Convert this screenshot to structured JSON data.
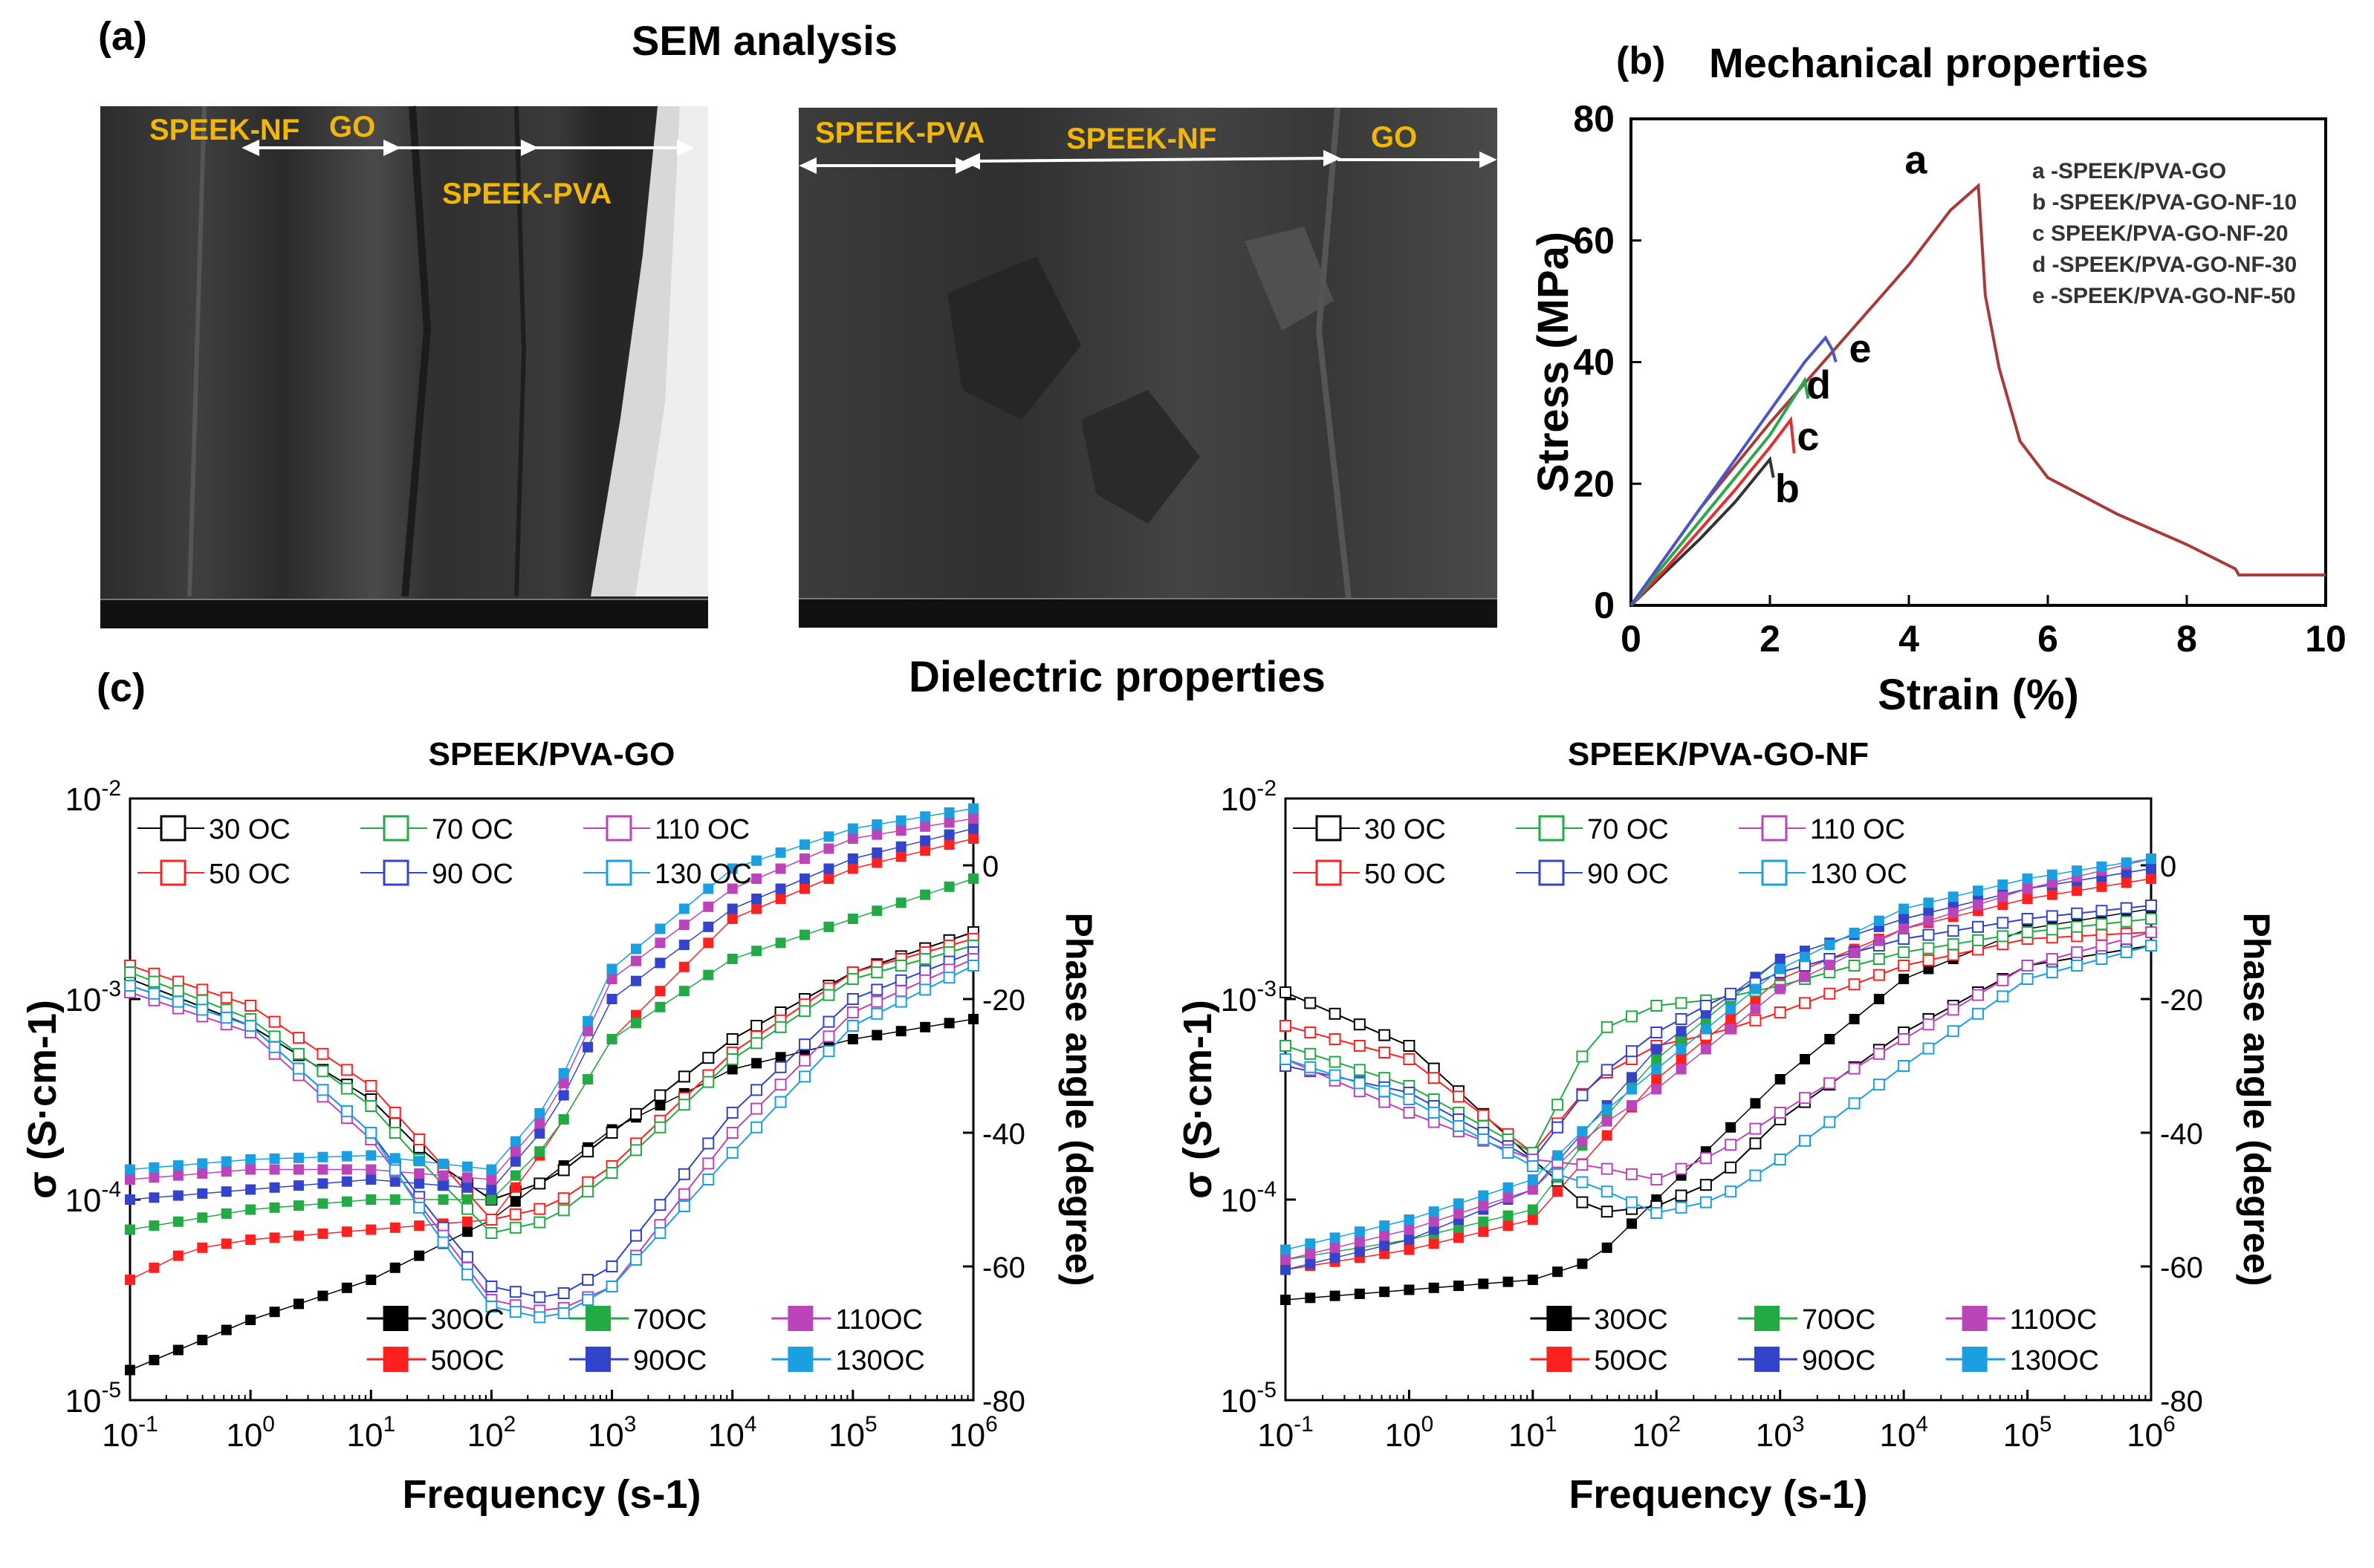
{
  "panel_a": {
    "label": "(a)",
    "title": "SEM analysis",
    "image1": {
      "labels": [
        "SPEEK-NF",
        "GO",
        "SPEEK-PVA"
      ]
    },
    "image2": {
      "labels": [
        "SPEEK-PVA",
        "SPEEK-NF",
        "GO"
      ]
    }
  },
  "panel_b": {
    "label": "(b)",
    "title": "Mechanical properties"
  },
  "panel_c": {
    "label": "(c)",
    "title": "Dielectric properties"
  },
  "chart_data": [
    {
      "type": "line",
      "title": "",
      "xlabel": "Strain (%)",
      "ylabel": "Stress (MPa)",
      "xlim": [
        0,
        10
      ],
      "ylim": [
        0,
        80
      ],
      "xticks": [
        0,
        2,
        4,
        6,
        8,
        10
      ],
      "yticks": [
        0,
        20,
        40,
        60,
        80
      ],
      "legend": [
        "a -SPEEK/PVA-GO",
        "b -SPEEK/PVA-GO-NF-10",
        "c  SPEEK/PVA-GO-NF-20",
        "d -SPEEK/PVA-GO-NF-30",
        "e -SPEEK/PVA-GO-NF-50"
      ],
      "legend_position": "top-right",
      "series": [
        {
          "name": "a",
          "color": "#a83a3a",
          "x": [
            0,
            1,
            2,
            3,
            4,
            4.6,
            5,
            5.05,
            5.1,
            5.3,
            5.6,
            6,
            7,
            8,
            8.7,
            8.75,
            10
          ],
          "y": [
            0,
            16,
            30,
            43,
            56,
            65,
            69,
            60,
            51,
            39,
            27,
            21,
            15,
            10,
            6,
            5,
            5
          ]
        },
        {
          "name": "b",
          "color": "#333333",
          "x": [
            0,
            0.5,
            1,
            1.5,
            2,
            2.05
          ],
          "y": [
            0,
            5.5,
            11,
            17,
            24,
            21
          ]
        },
        {
          "name": "c",
          "color": "#e03030",
          "x": [
            0,
            0.5,
            1,
            1.5,
            2,
            2.3,
            2.35
          ],
          "y": [
            0,
            6,
            12.5,
            19,
            26,
            30.5,
            25
          ]
        },
        {
          "name": "d",
          "color": "#2aa84a",
          "x": [
            0,
            0.5,
            1,
            1.5,
            2,
            2.5,
            2.55
          ],
          "y": [
            0,
            7,
            14,
            21,
            28,
            37,
            34
          ]
        },
        {
          "name": "e",
          "color": "#4a56c8",
          "x": [
            0,
            0.5,
            1,
            1.5,
            2,
            2.5,
            2.8,
            2.9,
            2.95
          ],
          "y": [
            0,
            8,
            16,
            24,
            32,
            40,
            44,
            42,
            40
          ]
        }
      ],
      "annotations": [
        "a",
        "b",
        "c",
        "d",
        "e"
      ]
    },
    {
      "type": "scatter",
      "title": "SPEEK/PVA-GO",
      "xlabel": "Frequency (s-1)",
      "ylabel": "σ (S·cm-1)",
      "y2label": "Phase angle (degree)",
      "x_scale": "log",
      "y_scale": "log",
      "xlim": [
        0.1,
        1000000
      ],
      "ylim": [
        1e-05,
        0.01
      ],
      "y2lim": [
        -80,
        10
      ],
      "x_ticks": [
        "10-1",
        "100",
        "101",
        "102",
        "103",
        "104",
        "105",
        "106"
      ],
      "y_ticks": [
        "10-5",
        "10-4",
        "10-3",
        "10-2"
      ],
      "y2_ticks": [
        "0",
        "-20",
        "-40",
        "-60",
        "-80"
      ],
      "conductivity_legend": [
        "30 OC",
        "50 OC",
        "70 OC",
        "90 OC",
        "110 OC",
        "130 OC"
      ],
      "phase_legend": [
        "30OC",
        "50OC",
        "70OC",
        "90OC",
        "110OC",
        "130OC"
      ],
      "series": [
        {
          "name": "30 OC",
          "color": "#000000",
          "logx": [
            -1,
            0,
            1,
            2,
            3,
            4,
            5,
            6
          ],
          "sigma_logy": [
            -4.85,
            -4.6,
            -4.4,
            -4.1,
            -3.65,
            -3.35,
            -3.2,
            -3.1
          ],
          "phase_logx": [
            -1,
            0,
            1,
            1.5,
            2,
            2.5,
            3,
            4,
            5,
            6
          ],
          "phase": [
            -17,
            -24,
            -35,
            -44,
            -50,
            -47,
            -40,
            -26,
            -16,
            -10
          ]
        },
        {
          "name": "50 OC",
          "color": "#ff2020",
          "logx": [
            -1,
            -0.5,
            0,
            1,
            2,
            2.5,
            3,
            4,
            5,
            6
          ],
          "sigma_logy": [
            -4.4,
            -4.25,
            -4.2,
            -4.15,
            -4.1,
            -3.7,
            -3.2,
            -2.6,
            -2.35,
            -2.2
          ],
          "phase_logx": [
            -1,
            0,
            1,
            1.5,
            2,
            2.5,
            3,
            4,
            5,
            6
          ],
          "phase": [
            -15,
            -21,
            -33,
            -43,
            -53,
            -51,
            -45,
            -28,
            -16,
            -11
          ]
        },
        {
          "name": "70 OC",
          "color": "#22aa44",
          "logx": [
            -1,
            0,
            1,
            2,
            2.5,
            3,
            4,
            5,
            6
          ],
          "sigma_logy": [
            -4.15,
            -4.05,
            -4.0,
            -4.0,
            -3.7,
            -3.2,
            -2.8,
            -2.6,
            -2.4
          ],
          "phase_logx": [
            -1,
            0,
            1,
            1.5,
            2,
            2.5,
            3,
            4,
            5,
            6
          ],
          "phase": [
            -16,
            -23,
            -36,
            -46,
            -55,
            -53,
            -46,
            -29,
            -17,
            -12
          ]
        },
        {
          "name": "90 OC",
          "color": "#3344cc",
          "logx": [
            -1,
            0,
            1,
            2,
            2.5,
            3,
            4,
            5,
            6
          ],
          "sigma_logy": [
            -4.0,
            -3.95,
            -3.9,
            -3.95,
            -3.6,
            -3.0,
            -2.55,
            -2.3,
            -2.15
          ],
          "phase_logx": [
            -1,
            0,
            1,
            1.5,
            2,
            2.5,
            3,
            4,
            5,
            6
          ],
          "phase": [
            -18,
            -24,
            -40,
            -52,
            -63,
            -65,
            -60,
            -37,
            -20,
            -13
          ]
        },
        {
          "name": "110 OC",
          "color": "#bb44bb",
          "logx": [
            -1,
            0,
            1,
            2,
            2.5,
            3,
            4,
            5,
            6
          ],
          "sigma_logy": [
            -3.9,
            -3.85,
            -3.85,
            -3.9,
            -3.55,
            -2.9,
            -2.45,
            -2.2,
            -2.1
          ],
          "phase_logx": [
            -1,
            0,
            1,
            1.5,
            2,
            2.5,
            3,
            4,
            5,
            6
          ],
          "phase": [
            -19,
            -25,
            -41,
            -53,
            -65,
            -67,
            -63,
            -40,
            -22,
            -14
          ]
        },
        {
          "name": "130 OC",
          "color": "#1aa0e0",
          "logx": [
            -1,
            0,
            1,
            2,
            2.5,
            3,
            4,
            5,
            6
          ],
          "sigma_logy": [
            -3.85,
            -3.8,
            -3.78,
            -3.85,
            -3.5,
            -2.85,
            -2.35,
            -2.15,
            -2.05
          ],
          "phase_logx": [
            -1,
            0,
            1,
            1.5,
            2,
            2.5,
            3,
            4,
            5,
            6
          ],
          "phase": [
            -18,
            -24,
            -40,
            -54,
            -66,
            -68,
            -63,
            -43,
            -24,
            -15
          ]
        }
      ]
    },
    {
      "type": "scatter",
      "title": "SPEEK/PVA-GO-NF",
      "xlabel": "Frequency (s-1)",
      "ylabel": "σ (S·cm-1)",
      "y2label": "Phase angle (degree)",
      "x_scale": "log",
      "y_scale": "log",
      "xlim": [
        0.1,
        1000000
      ],
      "ylim": [
        1e-05,
        0.01
      ],
      "y2lim": [
        -80,
        10
      ],
      "x_ticks": [
        "10-1",
        "100",
        "101",
        "102",
        "103",
        "104",
        "105",
        "106"
      ],
      "y_ticks": [
        "10-5",
        "10-4",
        "10-3",
        "10-2"
      ],
      "y2_ticks": [
        "0",
        "-20",
        "-40",
        "-60",
        "-80"
      ],
      "conductivity_legend": [
        "30 OC",
        "50 OC",
        "70 OC",
        "90 OC",
        "110 OC",
        "130 OC"
      ],
      "phase_legend": [
        "30OC",
        "50OC",
        "70OC",
        "90OC",
        "110OC",
        "130OC"
      ],
      "series": [
        {
          "name": "30 OC",
          "color": "#000000",
          "logx": [
            -1,
            0,
            1,
            1.5,
            2,
            2.5,
            3,
            4,
            5,
            6
          ],
          "sigma_logy": [
            -4.5,
            -4.45,
            -4.4,
            -4.3,
            -4.0,
            -3.7,
            -3.4,
            -2.9,
            -2.65,
            -2.55
          ],
          "phase_logx": [
            -1,
            0,
            1,
            1.5,
            2,
            2.5,
            3,
            4,
            5,
            6
          ],
          "phase": [
            -19,
            -27,
            -44,
            -52,
            -51,
            -47,
            -38,
            -25,
            -15,
            -12
          ]
        },
        {
          "name": "50 OC",
          "color": "#ff2020",
          "logx": [
            -1,
            0,
            1,
            1.5,
            2,
            3,
            4,
            5,
            6
          ],
          "sigma_logy": [
            -4.35,
            -4.25,
            -4.1,
            -3.75,
            -3.4,
            -2.9,
            -2.65,
            -2.5,
            -2.4
          ],
          "phase_logx": [
            -1,
            0,
            1,
            1.5,
            2,
            2.5,
            3,
            4,
            5,
            6
          ],
          "phase": [
            -24,
            -29,
            -43,
            -32,
            -27,
            -25,
            -22,
            -15,
            -11,
            -10
          ]
        },
        {
          "name": "70 OC",
          "color": "#22aa44",
          "logx": [
            -1,
            0,
            1,
            1.5,
            2,
            3,
            4,
            5,
            6
          ],
          "sigma_logy": [
            -4.3,
            -4.2,
            -4.05,
            -3.65,
            -3.3,
            -2.8,
            -2.6,
            -2.45,
            -2.35
          ],
          "phase_logx": [
            -1,
            0,
            1,
            1.5,
            2,
            2.5,
            3,
            4,
            5,
            6
          ],
          "phase": [
            -27,
            -33,
            -43,
            -25,
            -21,
            -20,
            -18,
            -13,
            -10,
            -8
          ]
        },
        {
          "name": "90 OC",
          "color": "#3344cc",
          "logx": [
            -1,
            0,
            1,
            1.5,
            2,
            3,
            4,
            5,
            6
          ],
          "sigma_logy": [
            -4.35,
            -4.2,
            -3.95,
            -3.6,
            -3.25,
            -2.8,
            -2.6,
            -2.45,
            -2.35
          ],
          "phase_logx": [
            -1,
            0,
            1,
            1.5,
            2,
            2.5,
            3,
            4,
            5,
            6
          ],
          "phase": [
            -30,
            -34,
            -44,
            -32,
            -25,
            -20,
            -16,
            -11,
            -8,
            -6
          ]
        },
        {
          "name": "110 OC",
          "color": "#bb44bb",
          "logx": [
            -1,
            0,
            1,
            1.5,
            2,
            3,
            4,
            5,
            6
          ],
          "sigma_logy": [
            -4.3,
            -4.15,
            -3.95,
            -3.65,
            -3.45,
            -2.95,
            -2.65,
            -2.45,
            -2.3
          ],
          "phase_logx": [
            -1,
            0,
            1,
            1.5,
            2,
            2.5,
            3,
            4,
            5,
            6
          ],
          "phase": [
            -29,
            -37,
            -44,
            -45,
            -47,
            -43,
            -37,
            -26,
            -15,
            -10
          ]
        },
        {
          "name": "130 OC",
          "color": "#1aa0e0",
          "logx": [
            -1,
            0,
            1,
            1.5,
            2,
            3,
            4,
            5,
            6
          ],
          "sigma_logy": [
            -4.25,
            -4.1,
            -3.9,
            -3.6,
            -3.35,
            -2.85,
            -2.55,
            -2.4,
            -2.3
          ],
          "phase_logx": [
            -1,
            0,
            1,
            1.5,
            2,
            2.5,
            3,
            4,
            5,
            6
          ],
          "phase": [
            -29,
            -35,
            -45,
            -48,
            -52,
            -50,
            -44,
            -30,
            -17,
            -12
          ]
        }
      ]
    }
  ]
}
